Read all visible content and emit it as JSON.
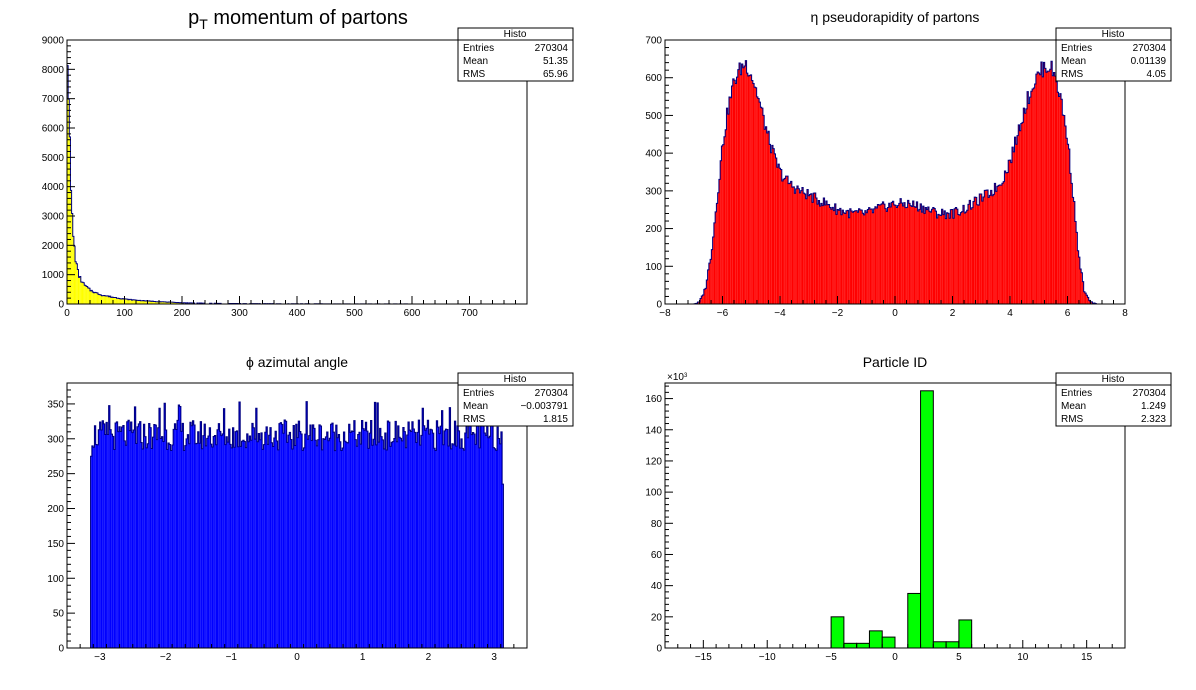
{
  "chart_data": [
    {
      "type": "bar",
      "histogram": true,
      "title_main": "p",
      "title_sub": "T",
      "title_rest": " momentum of partons",
      "xlim": [
        0,
        800
      ],
      "ylim": [
        0,
        9000
      ],
      "x_ticks": [
        0,
        100,
        200,
        300,
        400,
        500,
        600,
        700
      ],
      "y_ticks": [
        0,
        1000,
        2000,
        3000,
        4000,
        5000,
        6000,
        7000,
        8000,
        9000
      ],
      "fill": "#ffff00",
      "line": "#00007f",
      "stats": {
        "header": "Histo",
        "entries_label": "Entries",
        "entries": "270304",
        "mean_label": "Mean",
        "mean": "51.35",
        "rms_label": "RMS",
        "rms": "65.96"
      },
      "x": [
        0,
        2,
        4,
        6,
        8,
        10,
        12,
        14,
        16,
        18,
        20,
        25,
        30,
        40,
        50,
        60,
        80,
        100,
        120,
        150,
        180,
        200,
        250,
        300,
        400,
        500,
        600,
        700
      ],
      "values": [
        8700,
        8600,
        6300,
        4400,
        3300,
        2600,
        2100,
        1700,
        1400,
        1200,
        1000,
        800,
        650,
        480,
        380,
        310,
        230,
        170,
        130,
        90,
        60,
        45,
        25,
        15,
        8,
        4,
        2,
        1
      ]
    },
    {
      "type": "bar",
      "histogram": true,
      "title": "η pseudorapidity of partons",
      "xlim": [
        -8,
        8
      ],
      "ylim": [
        0,
        700
      ],
      "x_ticks": [
        -8,
        -6,
        -4,
        -2,
        0,
        2,
        4,
        6,
        8
      ],
      "y_ticks": [
        0,
        100,
        200,
        300,
        400,
        500,
        600,
        700
      ],
      "fill": "#ff0000",
      "line": "#00007f",
      "stats": {
        "header": "Histo",
        "entries_label": "Entries",
        "entries": "270304",
        "mean_label": "Mean",
        "mean": "0.01139",
        "rms_label": "RMS",
        "rms": "4.05"
      },
      "x": [
        -7.0,
        -6.8,
        -6.6,
        -6.4,
        -6.2,
        -6.0,
        -5.8,
        -5.6,
        -5.4,
        -5.2,
        -5.0,
        -4.8,
        -4.6,
        -4.4,
        -4.2,
        -4.0,
        -3.8,
        -3.6,
        -3.4,
        -3.2,
        -3.0,
        -2.8,
        -2.5,
        -2.0,
        -1.5,
        -1.0,
        -0.5,
        0.0,
        0.5,
        1.0,
        1.5,
        2.0,
        2.5,
        2.8,
        3.0,
        3.2,
        3.4,
        3.6,
        3.8,
        4.0,
        4.2,
        4.4,
        4.6,
        4.8,
        5.0,
        5.2,
        5.4,
        5.6,
        5.8,
        6.0,
        6.2,
        6.4,
        6.6,
        6.8,
        7.0
      ],
      "values": [
        0,
        5,
        40,
        130,
        270,
        420,
        520,
        590,
        620,
        640,
        610,
        560,
        500,
        440,
        390,
        350,
        330,
        315,
        305,
        295,
        290,
        280,
        270,
        250,
        240,
        240,
        255,
        265,
        265,
        255,
        240,
        240,
        255,
        270,
        280,
        290,
        300,
        315,
        340,
        380,
        430,
        490,
        540,
        580,
        610,
        630,
        630,
        600,
        530,
        440,
        290,
        120,
        30,
        5,
        0
      ]
    },
    {
      "type": "bar",
      "histogram": true,
      "title": "ϕ azimutal angle",
      "xlim": [
        -3.5,
        3.5
      ],
      "ylim": [
        0,
        380
      ],
      "x_ticks": [
        -3,
        -2,
        -1,
        0,
        1,
        2,
        3
      ],
      "y_ticks": [
        0,
        50,
        100,
        150,
        200,
        250,
        300,
        350
      ],
      "fill": "#0000ff",
      "line": "#00007f",
      "stats": {
        "header": "Histo",
        "entries_label": "Entries",
        "entries": "270304",
        "mean_label": "Mean",
        "mean": "−0.003791",
        "rms_label": "RMS",
        "rms": "1.815"
      },
      "x_range": [
        -3.1416,
        3.1416
      ],
      "level": 305,
      "peak_max": 355
    },
    {
      "type": "bar",
      "histogram": true,
      "title": "Particle ID",
      "y_multiplier": "×10",
      "y_multiplier_exp": "3",
      "xlim": [
        -18,
        18
      ],
      "ylim": [
        0,
        170
      ],
      "x_ticks": [
        -15,
        -10,
        -5,
        0,
        5,
        10,
        15
      ],
      "y_ticks": [
        0,
        20,
        40,
        60,
        80,
        100,
        120,
        140,
        160
      ],
      "fill": "#00ff00",
      "line": "#000000",
      "stats": {
        "header": "Histo",
        "entries_label": "Entries",
        "entries": "270304",
        "mean_label": "Mean",
        "mean": "1.249",
        "rms_label": "RMS",
        "rms": "2.323"
      },
      "bins": [
        {
          "x0": -5,
          "x1": -4,
          "value": 20
        },
        {
          "x0": -4,
          "x1": -3,
          "value": 3
        },
        {
          "x0": -3,
          "x1": -2,
          "value": 3
        },
        {
          "x0": -2,
          "x1": -1,
          "value": 11
        },
        {
          "x0": -1,
          "x1": 0,
          "value": 7
        },
        {
          "x0": 1,
          "x1": 2,
          "value": 35
        },
        {
          "x0": 2,
          "x1": 3,
          "value": 165
        },
        {
          "x0": 3,
          "x1": 4,
          "value": 4
        },
        {
          "x0": 4,
          "x1": 5,
          "value": 4
        },
        {
          "x0": 5,
          "x1": 6,
          "value": 18
        }
      ]
    }
  ]
}
